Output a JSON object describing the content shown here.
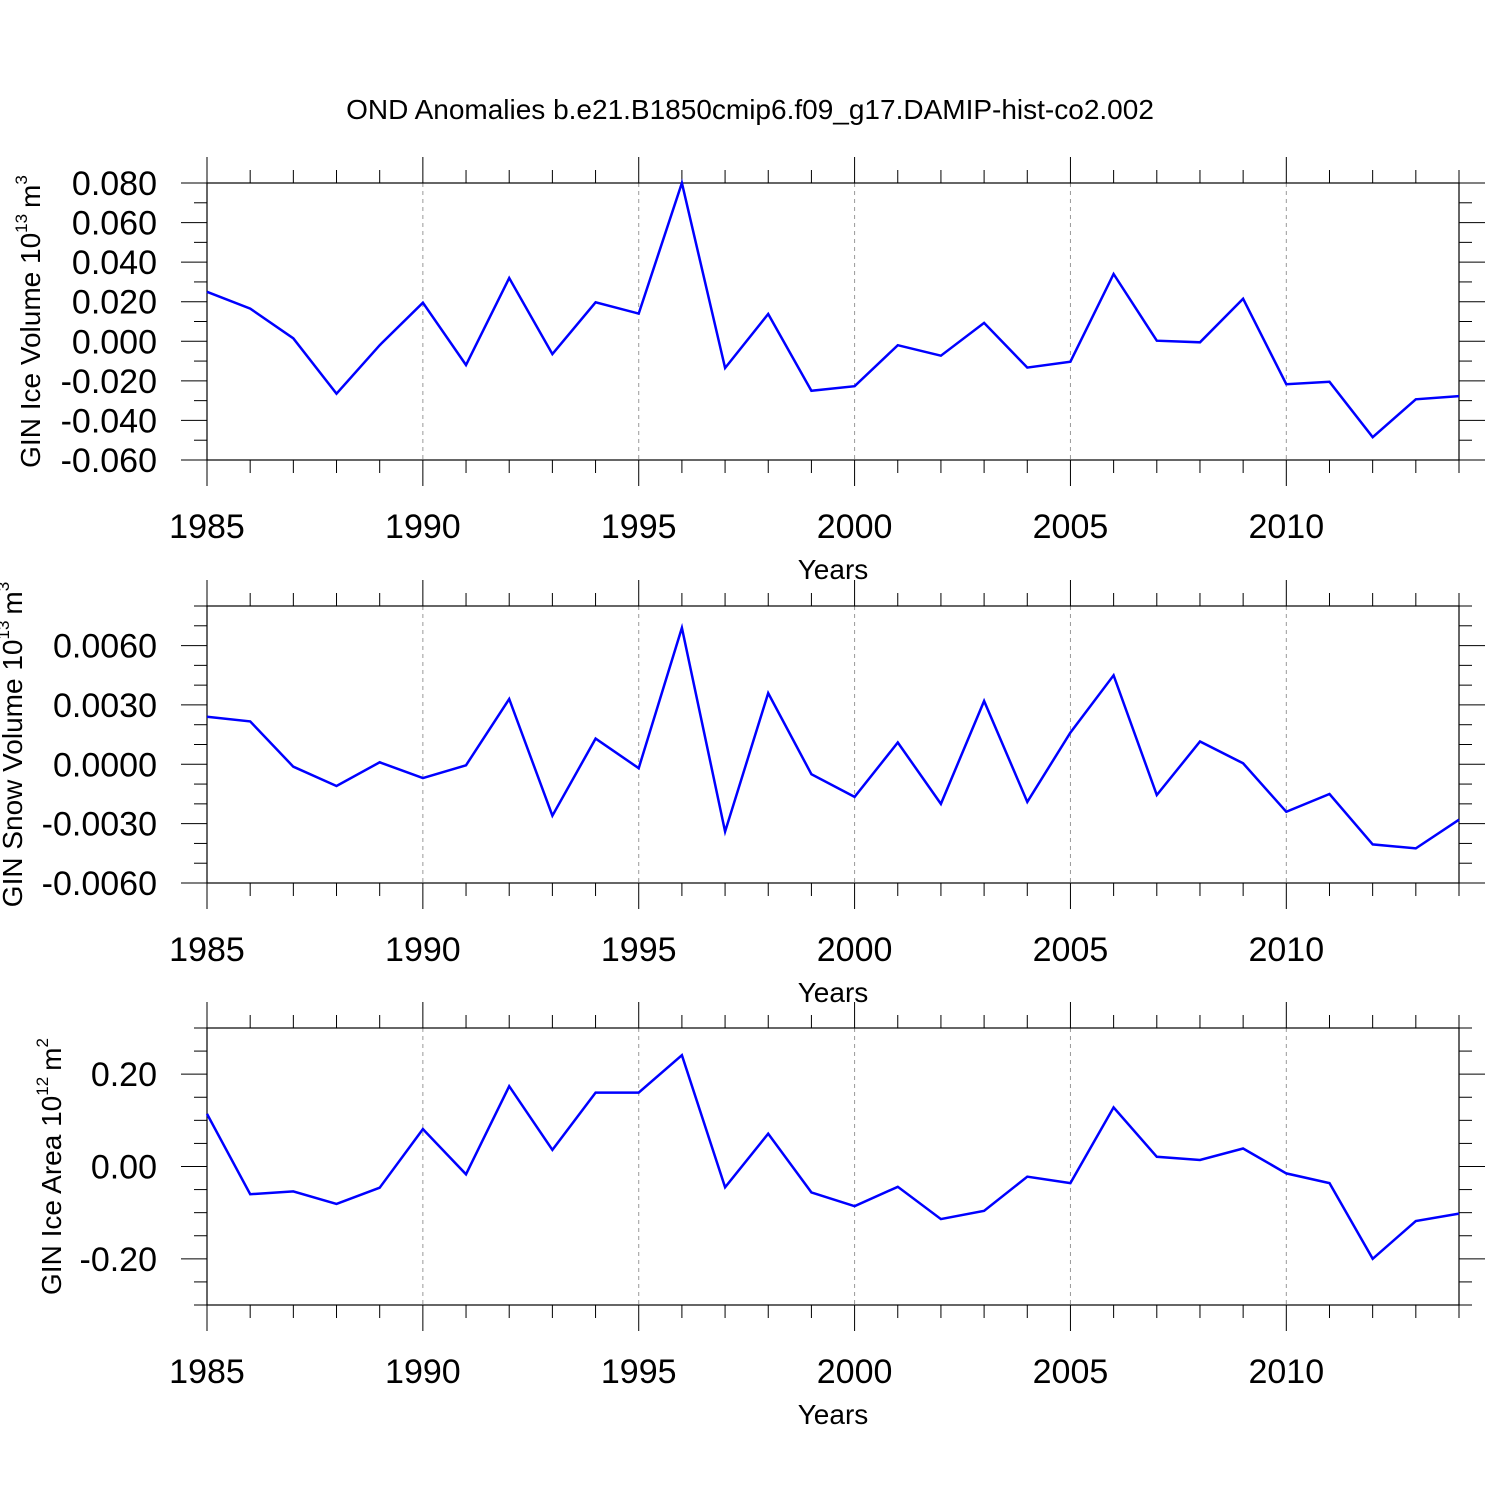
{
  "figure": {
    "title": "OND Anomalies b.e21.B1850cmip6.f09_g17.DAMIP-hist-co2.002",
    "line_color": "#0000ff"
  },
  "chart_data": [
    {
      "type": "line",
      "title": "",
      "xlabel": "Years",
      "ylabel": "GIN Ice Volume 10",
      "ylabel_exp": "13",
      "ylabel_unit": "m",
      "ylabel_unit_exp": "3",
      "xlim": [
        1985,
        2014
      ],
      "ylim": [
        -0.06,
        0.08
      ],
      "grid": "vertical dashed at major x ticks",
      "x_ticks": [
        1985,
        1990,
        1995,
        2000,
        2005,
        2010
      ],
      "x_tick_labels": [
        "1985",
        "1990",
        "1995",
        "2000",
        "2005",
        "2010"
      ],
      "y_ticks": [
        -0.06,
        -0.04,
        -0.02,
        0.0,
        0.02,
        0.04,
        0.06,
        0.08
      ],
      "y_tick_labels": [
        "-0.060",
        "-0.040",
        "-0.020",
        "0.000",
        "0.020",
        "0.040",
        "0.060",
        "0.080"
      ],
      "series": [
        {
          "x": [
            1985,
            1986,
            1987,
            1988,
            1989,
            1990,
            1991,
            1992,
            1993,
            1994,
            1995,
            1996,
            1997,
            1998,
            1999,
            2000,
            2001,
            2002,
            2003,
            2004,
            2005,
            2006,
            2007,
            2008,
            2009,
            2010,
            2011,
            2012,
            2013,
            2014
          ],
          "values": [
            0.025,
            0.0165,
            0.0015,
            -0.0265,
            -0.002,
            0.0195,
            -0.012,
            0.032,
            -0.0065,
            0.0197,
            0.014,
            0.08,
            -0.0135,
            0.0138,
            -0.025,
            -0.0227,
            -0.002,
            -0.0073,
            0.0093,
            -0.0133,
            -0.0103,
            0.034,
            0.0003,
            -0.0005,
            0.0215,
            -0.0217,
            -0.0205,
            -0.0485,
            -0.0293,
            -0.0277
          ]
        }
      ]
    },
    {
      "type": "line",
      "title": "",
      "xlabel": "Years",
      "ylabel": "GIN Snow Volume 10",
      "ylabel_exp": "13",
      "ylabel_unit": "m",
      "ylabel_unit_exp": "3",
      "xlim": [
        1985,
        2014
      ],
      "ylim": [
        -0.006,
        0.008
      ],
      "grid": "vertical dashed at major x ticks",
      "x_ticks": [
        1985,
        1990,
        1995,
        2000,
        2005,
        2010
      ],
      "x_tick_labels": [
        "1985",
        "1990",
        "1995",
        "2000",
        "2005",
        "2010"
      ],
      "y_ticks": [
        -0.006,
        -0.003,
        0.0,
        0.003,
        0.006
      ],
      "y_tick_labels": [
        "-0.0060",
        "-0.0030",
        "0.0000",
        "0.0030",
        "0.0060"
      ],
      "series": [
        {
          "x": [
            1985,
            1986,
            1987,
            1988,
            1989,
            1990,
            1991,
            1992,
            1993,
            1994,
            1995,
            1996,
            1997,
            1998,
            1999,
            2000,
            2001,
            2002,
            2003,
            2004,
            2005,
            2006,
            2007,
            2008,
            2009,
            2010,
            2011,
            2012,
            2013,
            2014
          ],
          "values": [
            0.0024,
            0.00217,
            -0.00012,
            -0.0011,
            0.0001,
            -0.0007,
            -5e-05,
            0.0033,
            -0.0026,
            0.0013,
            -0.0002,
            0.0069,
            -0.0034,
            0.0036,
            -0.0005,
            -0.00165,
            0.0011,
            -0.002,
            0.0032,
            -0.0019,
            0.0016,
            0.0045,
            -0.00155,
            0.00115,
            5e-05,
            -0.0024,
            -0.0015,
            -0.00405,
            -0.00425,
            -0.0028
          ]
        }
      ]
    },
    {
      "type": "line",
      "title": "",
      "xlabel": "Years",
      "ylabel": "GIN Ice Area 10",
      "ylabel_exp": "12",
      "ylabel_unit": "m",
      "ylabel_unit_exp": "2",
      "xlim": [
        1985,
        2014
      ],
      "ylim": [
        -0.3,
        0.3
      ],
      "grid": "vertical dashed at major x ticks",
      "x_ticks": [
        1985,
        1990,
        1995,
        2000,
        2005,
        2010
      ],
      "x_tick_labels": [
        "1985",
        "1990",
        "1995",
        "2000",
        "2005",
        "2010"
      ],
      "y_ticks": [
        -0.2,
        0.0,
        0.2
      ],
      "y_tick_labels": [
        "-0.20",
        "0.00",
        "0.20"
      ],
      "series": [
        {
          "x": [
            1985,
            1986,
            1987,
            1988,
            1989,
            1990,
            1991,
            1992,
            1993,
            1994,
            1995,
            1996,
            1997,
            1998,
            1999,
            2000,
            2001,
            2002,
            2003,
            2004,
            2005,
            2006,
            2007,
            2008,
            2009,
            2010,
            2011,
            2012,
            2013,
            2014
          ],
          "values": [
            0.114,
            -0.06,
            -0.054,
            -0.081,
            -0.046,
            0.081,
            -0.017,
            0.174,
            0.036,
            0.16,
            0.16,
            0.241,
            -0.045,
            0.071,
            -0.056,
            -0.086,
            -0.044,
            -0.114,
            -0.096,
            -0.022,
            -0.036,
            0.128,
            0.021,
            0.014,
            0.039,
            -0.015,
            -0.036,
            -0.2,
            -0.118,
            -0.102
          ]
        }
      ]
    }
  ]
}
